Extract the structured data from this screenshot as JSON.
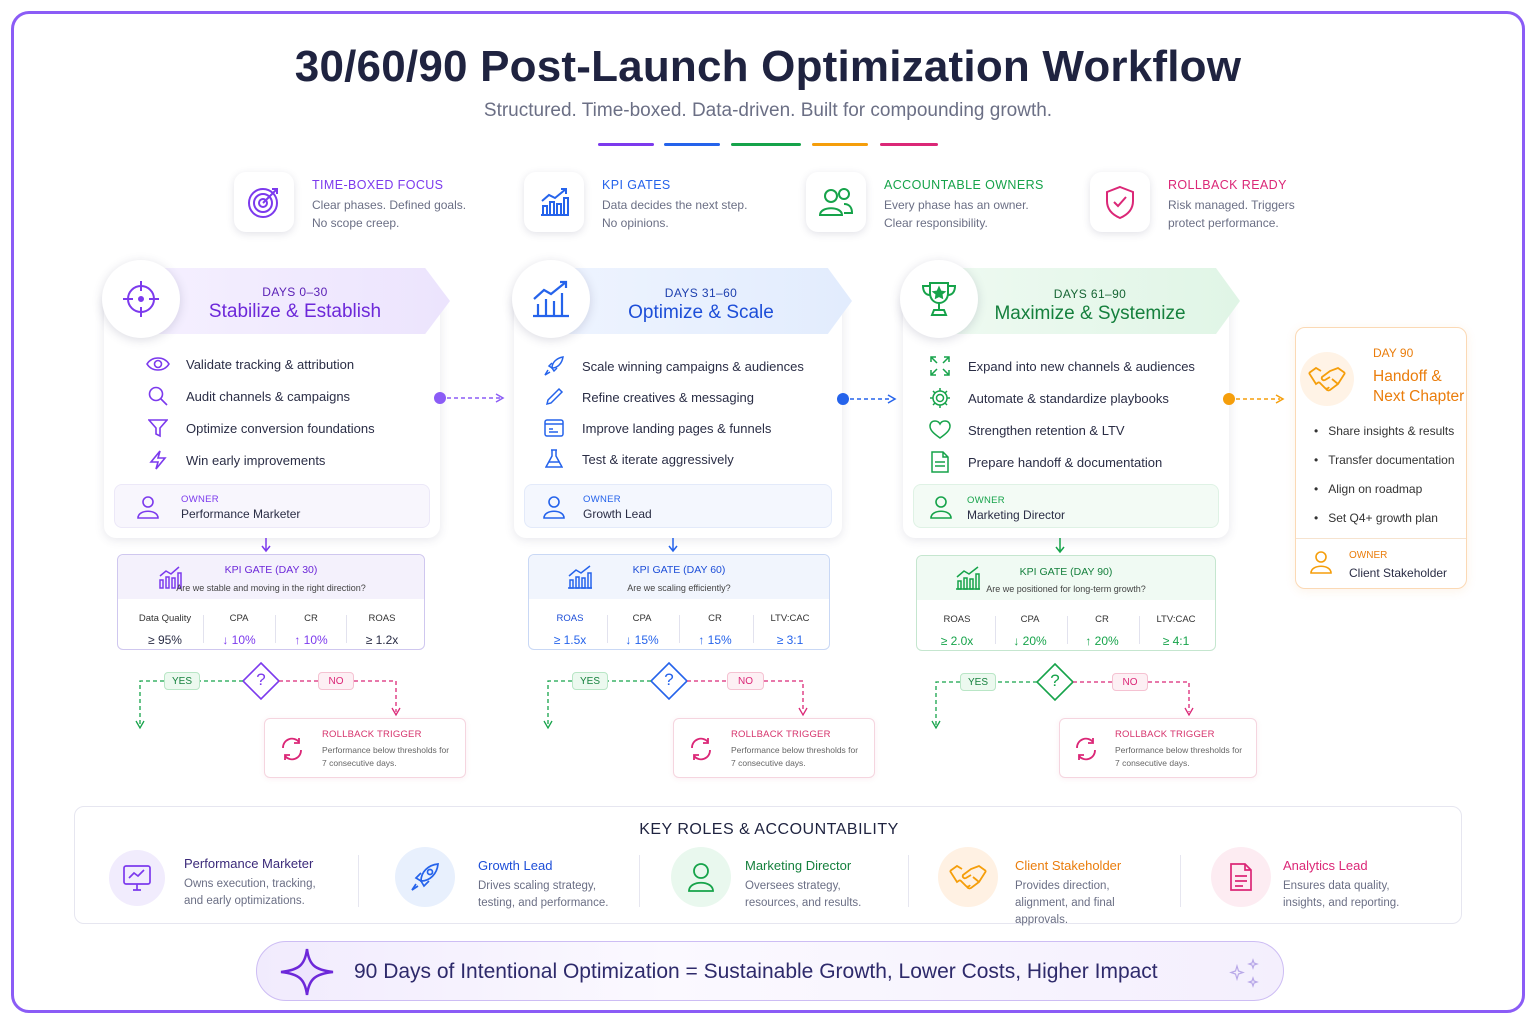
{
  "header": {
    "title": "30/60/90 Post-Launch Optimization Workflow",
    "subtitle": "Structured. Time-boxed. Data-driven. Built for compounding growth."
  },
  "colors": {
    "purple": "#7c3aed",
    "blue": "#2563eb",
    "green": "#16a34a",
    "orange": "#f59e0b",
    "pink": "#db2777"
  },
  "pillars": [
    {
      "title": "TIME-BOXED FOCUS",
      "desc": "Clear phases. Defined goals.\nNo scope creep.",
      "icon": "target-icon"
    },
    {
      "title": "KPI GATES",
      "desc": "Data decides the next step.\nNo opinions.",
      "icon": "chart-icon"
    },
    {
      "title": "ACCOUNTABLE OWNERS",
      "desc": "Every phase has an owner.\nClear responsibility.",
      "icon": "users-icon"
    },
    {
      "title": "ROLLBACK READY",
      "desc": "Risk managed. Triggers\nprotect performance.",
      "icon": "shield-icon"
    }
  ],
  "phases": [
    {
      "days": "DAYS 0–30",
      "name": "Stabilize & Establish",
      "icon": "crosshair-icon",
      "items": [
        "Validate tracking & attribution",
        "Audit channels & campaigns",
        "Optimize conversion foundations",
        "Win early improvements"
      ],
      "item_icons": [
        "eye-icon",
        "search-icon",
        "funnel-icon",
        "bolt-icon"
      ],
      "owner_label": "OWNER",
      "owner": "Performance Marketer",
      "gate": {
        "title": "KPI GATE (DAY 30)",
        "question": "Are we stable and moving in the right direction?",
        "metrics": [
          {
            "label": "Data Quality",
            "value": "≥ 95%"
          },
          {
            "label": "CPA",
            "value": "↓ 10%"
          },
          {
            "label": "CR",
            "value": "↑ 10%"
          },
          {
            "label": "ROAS",
            "value": "≥ 1.2x"
          }
        ]
      },
      "yes": "YES",
      "no": "NO",
      "rollback": {
        "title": "ROLLBACK TRIGGER",
        "desc": "Performance below thresholds for 7 consecutive days."
      }
    },
    {
      "days": "DAYS 31–60",
      "name": "Optimize & Scale",
      "icon": "bar-chart-icon",
      "items": [
        "Scale winning campaigns & audiences",
        "Refine creatives & messaging",
        "Improve landing pages & funnels",
        "Test & iterate aggressively"
      ],
      "item_icons": [
        "rocket-icon",
        "pen-icon",
        "browser-icon",
        "flask-icon"
      ],
      "owner_label": "OWNER",
      "owner": "Growth Lead",
      "gate": {
        "title": "KPI GATE (DAY 60)",
        "question": "Are we scaling efficiently?",
        "metrics": [
          {
            "label": "ROAS",
            "value": "≥ 1.5x"
          },
          {
            "label": "CPA",
            "value": "↓ 15%"
          },
          {
            "label": "CR",
            "value": "↑ 15%"
          },
          {
            "label": "LTV:CAC",
            "value": "≥ 3:1"
          }
        ]
      },
      "yes": "YES",
      "no": "NO",
      "rollback": {
        "title": "ROLLBACK TRIGGER",
        "desc": "Performance below thresholds for 7 consecutive days."
      }
    },
    {
      "days": "DAYS 61–90",
      "name": "Maximize & Systemize",
      "icon": "trophy-icon",
      "items": [
        "Expand into new channels & audiences",
        "Automate & standardize playbooks",
        "Strengthen retention & LTV",
        "Prepare handoff & documentation"
      ],
      "item_icons": [
        "expand-icon",
        "gear-icon",
        "heart-icon",
        "document-icon"
      ],
      "owner_label": "OWNER",
      "owner": "Marketing Director",
      "gate": {
        "title": "KPI GATE (DAY 90)",
        "question": "Are we positioned for long-term growth?",
        "metrics": [
          {
            "label": "ROAS",
            "value": "≥ 2.0x"
          },
          {
            "label": "CPA",
            "value": "↓ 20%"
          },
          {
            "label": "CR",
            "value": "↑ 20%"
          },
          {
            "label": "LTV:CAC",
            "value": "≥ 4:1"
          }
        ]
      },
      "yes": "YES",
      "no": "NO",
      "rollback": {
        "title": "ROLLBACK TRIGGER",
        "desc": "Performance below thresholds for 7 consecutive days."
      }
    }
  ],
  "handoff": {
    "day": "DAY 90",
    "name": "Handoff & Next Chapter",
    "icon": "handshake-icon",
    "items": [
      "Share insights & results",
      "Transfer documentation",
      "Align on roadmap",
      "Set Q4+ growth plan"
    ],
    "owner_label": "OWNER",
    "owner": "Client Stakeholder"
  },
  "roles": {
    "title": "KEY ROLES & ACCOUNTABILITY",
    "items": [
      {
        "name": "Performance Marketer",
        "desc": "Owns execution, tracking, and early optimizations.",
        "icon": "monitor-icon"
      },
      {
        "name": "Growth Lead",
        "desc": "Drives scaling strategy, testing, and performance.",
        "icon": "rocket-icon"
      },
      {
        "name": "Marketing Director",
        "desc": "Oversees strategy, resources, and results.",
        "icon": "person-icon"
      },
      {
        "name": "Client Stakeholder",
        "desc": "Provides direction, alignment, and final approvals.",
        "icon": "handshake-icon"
      },
      {
        "name": "Analytics Lead",
        "desc": "Ensures data quality, insights, and reporting.",
        "icon": "report-icon"
      }
    ]
  },
  "footer": {
    "tagline": "90 Days of Intentional Optimization = Sustainable Growth, Lower Costs, Higher Impact"
  }
}
